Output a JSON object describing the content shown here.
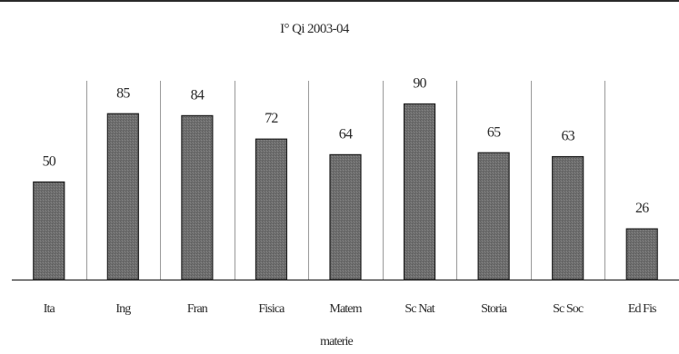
{
  "chart_data": {
    "type": "bar",
    "title": "I° Qi 2003-04",
    "xlabel": "materie",
    "ylabel": "",
    "categories": [
      "Ita",
      "Ing",
      "Fran",
      "Fisica",
      "Matem",
      "Sc Nat",
      "Storia",
      "Sc Soc",
      "Ed Fis"
    ],
    "values": [
      50,
      85,
      84,
      72,
      64,
      90,
      65,
      63,
      26
    ],
    "ylim": [
      0,
      100
    ],
    "grid": "vertical category dividers",
    "legend": "none",
    "colors": {
      "bar": "#6f6f6f",
      "bar_edge": "#1e1e1e",
      "text": "#2a2a2a",
      "divider": "#9a9a9a",
      "border": "#2a2a2a"
    }
  }
}
